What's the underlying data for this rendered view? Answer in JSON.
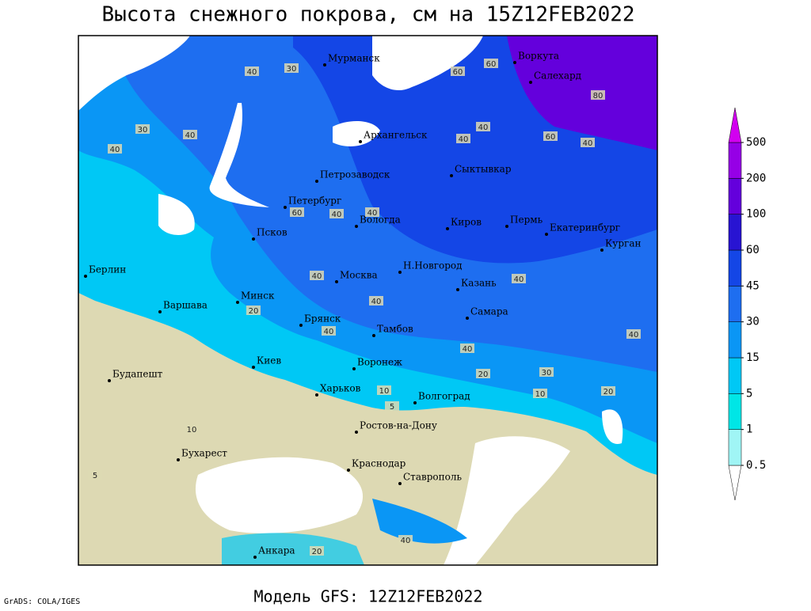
{
  "title": "Высота снежного покрова, см на 15Z12FEB2022",
  "footer": "Модель GFS: 12Z12FEB2022",
  "credit": "GrADS: COLA/IGES",
  "cities": [
    "Мурманск",
    "Воркута",
    "Салехард",
    "Архангельск",
    "Петрозаводск",
    "Сыктывкар",
    "Петербург",
    "Вологда",
    "Киров",
    "Пермь",
    "Екатеринбург",
    "Псков",
    "Курган",
    "Берлин",
    "Н.Новгород",
    "Казань",
    "Москва",
    "Минск",
    "Варшава",
    "Самара",
    "Брянск",
    "Тамбов",
    "Киев",
    "Воронеж",
    "Будапешт",
    "Харьков",
    "Волгоград",
    "Ростов-на-Дону",
    "Бухарест",
    "Краснодар",
    "Ставрополь",
    "Анкара"
  ],
  "contour_labels": [
    40,
    30,
    40,
    30,
    40,
    60,
    60,
    40,
    80,
    60,
    40,
    40,
    40,
    60,
    40,
    40,
    40,
    40,
    20,
    40,
    40,
    40,
    30,
    20,
    10,
    20,
    10,
    5,
    10,
    20,
    40,
    5
  ],
  "legend": {
    "levels": [
      0.5,
      1,
      5,
      15,
      30,
      45,
      60,
      100,
      200,
      500
    ],
    "colors": [
      "#ffffff",
      "#a0f5f5",
      "#00e6e6",
      "#00c8f5",
      "#0a96f5",
      "#1e6ef0",
      "#1446e6",
      "#2814d2",
      "#6400dc",
      "#9600e6",
      "#d200f0"
    ]
  }
}
